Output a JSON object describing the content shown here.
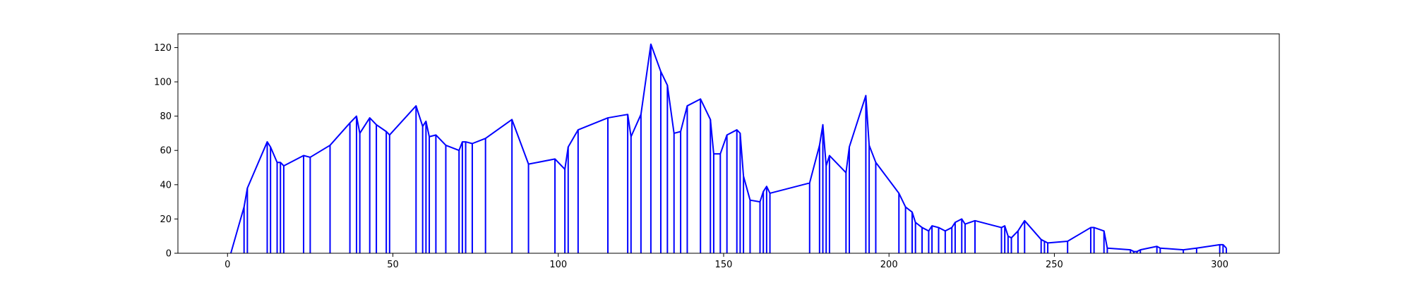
{
  "chart_data": {
    "type": "line",
    "title": "",
    "xlabel": "",
    "ylabel": "",
    "xlim": [
      -15,
      318
    ],
    "ylim": [
      0,
      128
    ],
    "xticks": [
      0,
      50,
      100,
      150,
      200,
      250,
      300
    ],
    "yticks": [
      0,
      20,
      40,
      60,
      80,
      100,
      120
    ],
    "xtick_labels": [
      "0",
      "50",
      "100",
      "150",
      "200",
      "250",
      "300"
    ],
    "ytick_labels": [
      "0",
      "20",
      "40",
      "60",
      "80",
      "100",
      "120"
    ],
    "grid": false,
    "legend": "none",
    "color": "#0000ff",
    "series": [
      {
        "x": [
          1,
          5,
          6,
          12,
          13,
          15,
          16,
          17,
          23,
          25,
          31,
          37,
          39,
          40,
          43,
          45,
          48,
          49,
          57,
          59,
          60,
          61,
          63,
          66,
          70,
          71,
          72,
          74,
          78,
          86,
          91,
          99,
          102,
          103,
          106,
          115,
          121,
          122,
          125,
          128,
          131,
          133,
          135,
          137,
          139,
          143,
          146,
          147,
          149,
          151,
          154,
          155,
          156,
          158,
          161,
          162,
          163,
          164,
          176,
          179,
          180,
          181,
          182,
          187,
          188,
          193,
          194,
          196,
          203,
          205,
          207,
          208,
          210,
          212,
          213,
          215,
          217,
          219,
          220,
          222,
          223,
          226,
          234,
          235,
          236,
          237,
          239,
          241,
          246,
          247,
          248,
          254,
          261,
          262,
          265,
          266,
          273,
          274,
          275,
          276,
          281,
          282,
          289,
          293,
          300,
          301,
          302
        ],
        "y": [
          0,
          27,
          38,
          65,
          62,
          53,
          53,
          51,
          57,
          56,
          63,
          76,
          80,
          70,
          79,
          75,
          71,
          69,
          86,
          74,
          77,
          68,
          69,
          63,
          60,
          65,
          65,
          64,
          67,
          78,
          52,
          55,
          49,
          62,
          72,
          79,
          81,
          68,
          81,
          122,
          106,
          98,
          70,
          71,
          86,
          90,
          78,
          58,
          58,
          69,
          72,
          70,
          45,
          31,
          30,
          36,
          39,
          35,
          41,
          63,
          75,
          51,
          57,
          47,
          62,
          92,
          63,
          53,
          35,
          27,
          24,
          18,
          15,
          13,
          16,
          15,
          13,
          15,
          18,
          20,
          17,
          19,
          15,
          16,
          10,
          9,
          13,
          19,
          8,
          7,
          6,
          7,
          15,
          15,
          13,
          3,
          2,
          1,
          1,
          2,
          4,
          3,
          2,
          3,
          5,
          5,
          3
        ]
      }
    ]
  }
}
